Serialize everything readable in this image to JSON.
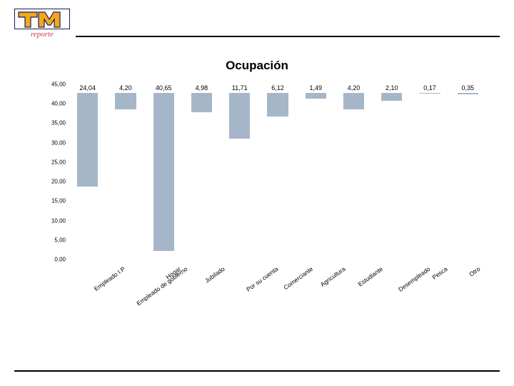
{
  "logo": {
    "bg": "#ffffff",
    "border": "#1a1d52",
    "tm_fill": "#f2a81d",
    "tm_edge": "#1a1d52",
    "sub": "reporte",
    "sub_color": "#d03a3a"
  },
  "title": "Ocupación",
  "chart": {
    "type": "bar",
    "ymax": 45,
    "ystep": 5,
    "bar_color": "#a5b6c9",
    "value_color": "#000000",
    "yticks": [
      "45,00",
      "40,00",
      "35,00",
      "30,00",
      "25,00",
      "20,00",
      "15,00",
      "10,00",
      "5,00",
      "0,00"
    ],
    "categories": [
      "Empleado I.P",
      "Empleado de gobierno",
      "Hogar",
      "Jubilado",
      "Por su cuenta",
      "Comerciante",
      "Agricultura",
      "Estudiante",
      "Desempleado",
      "Pesca",
      "Otro"
    ],
    "values": [
      24.04,
      4.2,
      40.65,
      4.98,
      11.71,
      6.12,
      1.49,
      4.2,
      2.1,
      0.17,
      0.35
    ],
    "value_labels": [
      "24,04",
      "4,20",
      "40,65",
      "4,98",
      "11,71",
      "6,12",
      "1,49",
      "4,20",
      "2,10",
      "0,17",
      "0,35"
    ]
  }
}
